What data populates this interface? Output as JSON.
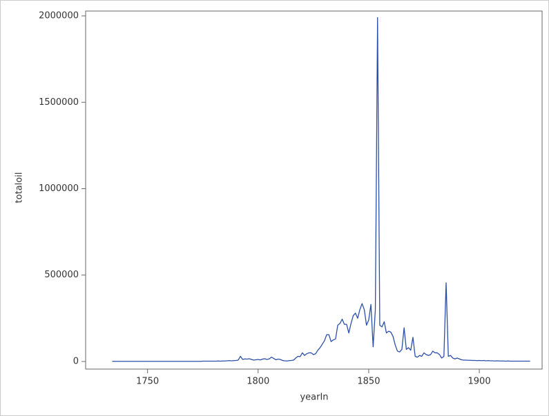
{
  "chart_data": {
    "type": "line",
    "x_label": "yearIn",
    "y_label": "totaloil",
    "color": "#2a4ea8",
    "xlim": [
      1722,
      1928.4
    ],
    "ylim": [
      -44000,
      2028000
    ],
    "xticks": [
      1750,
      1800,
      1850,
      1900
    ],
    "yticks": [
      0,
      500000,
      1000000,
      1500000,
      2000000
    ],
    "x": [
      1734,
      1735,
      1736,
      1737,
      1738,
      1739,
      1740,
      1741,
      1742,
      1743,
      1744,
      1745,
      1746,
      1747,
      1748,
      1749,
      1750,
      1751,
      1752,
      1753,
      1754,
      1755,
      1756,
      1757,
      1758,
      1759,
      1760,
      1761,
      1762,
      1763,
      1764,
      1765,
      1766,
      1767,
      1768,
      1769,
      1770,
      1771,
      1772,
      1773,
      1774,
      1775,
      1776,
      1777,
      1778,
      1779,
      1780,
      1781,
      1782,
      1783,
      1784,
      1785,
      1786,
      1787,
      1788,
      1789,
      1790,
      1791,
      1792,
      1793,
      1794,
      1795,
      1796,
      1797,
      1798,
      1799,
      1800,
      1801,
      1802,
      1803,
      1804,
      1805,
      1806,
      1807,
      1808,
      1809,
      1810,
      1811,
      1812,
      1813,
      1814,
      1815,
      1816,
      1817,
      1818,
      1819,
      1820,
      1821,
      1822,
      1823,
      1824,
      1825,
      1826,
      1827,
      1828,
      1829,
      1830,
      1831,
      1832,
      1833,
      1834,
      1835,
      1836,
      1837,
      1838,
      1839,
      1840,
      1841,
      1842,
      1843,
      1844,
      1845,
      1846,
      1847,
      1848,
      1849,
      1850,
      1851,
      1852,
      1853,
      1854,
      1855,
      1856,
      1857,
      1858,
      1859,
      1860,
      1861,
      1862,
      1863,
      1864,
      1865,
      1866,
      1867,
      1868,
      1869,
      1870,
      1871,
      1872,
      1873,
      1874,
      1875,
      1876,
      1877,
      1878,
      1879,
      1880,
      1881,
      1882,
      1883,
      1884,
      1885,
      1886,
      1887,
      1888,
      1889,
      1890,
      1891,
      1892,
      1893,
      1894,
      1895,
      1896,
      1897,
      1898,
      1899,
      1900,
      1901,
      1902,
      1903,
      1904,
      1905,
      1906,
      1907,
      1908,
      1909,
      1910,
      1911,
      1912,
      1913,
      1914,
      1915,
      1916,
      1917,
      1918,
      1919,
      1920,
      1921,
      1922,
      1923
    ],
    "values": [
      1000,
      1000,
      1000,
      1000,
      1000,
      1000,
      1000,
      1000,
      1000,
      1000,
      1000,
      1000,
      1000,
      1000,
      1000,
      1000,
      1000,
      1000,
      1000,
      1000,
      1000,
      1000,
      1000,
      1000,
      1000,
      1000,
      1000,
      1000,
      1000,
      1000,
      1000,
      1000,
      1000,
      1000,
      1000,
      1000,
      1000,
      1000,
      1000,
      1000,
      1000,
      2000,
      2000,
      2000,
      2000,
      2000,
      2000,
      2000,
      3000,
      2000,
      3000,
      3000,
      4000,
      5000,
      4000,
      5000,
      6000,
      8000,
      30000,
      12000,
      15000,
      14000,
      16000,
      12000,
      8000,
      10000,
      12000,
      9000,
      14000,
      16000,
      12000,
      15000,
      25000,
      18000,
      10000,
      14000,
      12000,
      6000,
      4000,
      3000,
      5000,
      6000,
      8000,
      20000,
      30000,
      28000,
      50000,
      35000,
      45000,
      50000,
      50000,
      40000,
      45000,
      65000,
      80000,
      100000,
      120000,
      155000,
      155000,
      115000,
      125000,
      130000,
      210000,
      220000,
      245000,
      215000,
      215000,
      165000,
      220000,
      265000,
      280000,
      250000,
      300000,
      335000,
      300000,
      210000,
      240000,
      330000,
      85000,
      300000,
      1990000,
      210000,
      200000,
      230000,
      165000,
      175000,
      170000,
      145000,
      95000,
      60000,
      55000,
      70000,
      195000,
      70000,
      80000,
      65000,
      140000,
      30000,
      25000,
      35000,
      30000,
      50000,
      40000,
      35000,
      40000,
      60000,
      50000,
      50000,
      40000,
      20000,
      30000,
      455000,
      30000,
      35000,
      20000,
      15000,
      20000,
      15000,
      10000,
      8000,
      8000,
      7000,
      7000,
      6000,
      6000,
      5000,
      6000,
      5000,
      6000,
      4000,
      5000,
      4000,
      4000,
      3000,
      4000,
      3000,
      3000,
      3000,
      2000,
      3000,
      2000,
      2000,
      2000,
      2000,
      2000,
      2000,
      2000,
      2000,
      2000,
      2000
    ]
  }
}
